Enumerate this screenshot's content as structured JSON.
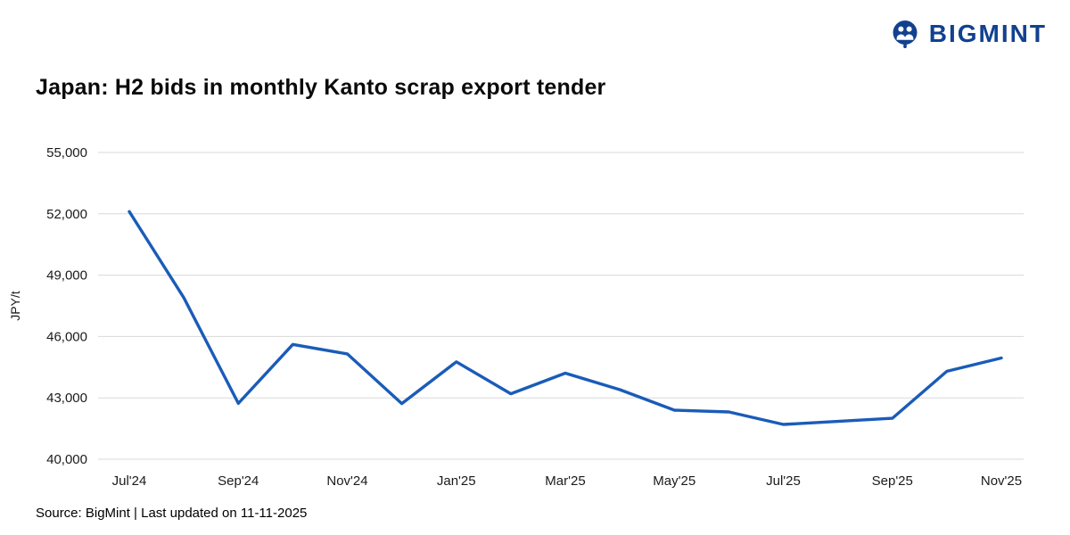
{
  "logo": {
    "text": "BIGMINT",
    "color": "#12418f"
  },
  "title": "Japan: H2 bids in monthly Kanto scrap export tender",
  "footer": "Source: BigMint | Last updated on 11-11-2025",
  "chart_data": {
    "type": "line",
    "title": "Japan: H2 bids in monthly Kanto scrap export tender",
    "xlabel": "",
    "ylabel": "JPY/t",
    "ylim": [
      40000,
      55000
    ],
    "ytick_step": 3000,
    "ytick_labels": [
      "40,000",
      "43,000",
      "46,000",
      "49,000",
      "52,000",
      "55,000"
    ],
    "x": [
      "Jul'24",
      "Aug'24",
      "Sep'24",
      "Oct'24",
      "Nov'24",
      "Dec'24",
      "Jan'25",
      "Feb'25",
      "Mar'25",
      "Apr'25",
      "May'25",
      "Jun'25",
      "Jul'25",
      "Aug'25",
      "Sep'25",
      "Oct'25",
      "Nov'25"
    ],
    "xtick_every": 2,
    "xtick_labels": [
      "Jul'24",
      "Sep'24",
      "Nov'24",
      "Jan'25",
      "Mar'25",
      "May'25",
      "Jul'25",
      "Sep'25",
      "Nov'25"
    ],
    "series": [
      {
        "name": "H2 bids",
        "color": "#1a5cb8",
        "values": [
          52110,
          47900,
          42730,
          45610,
          45150,
          42720,
          44760,
          43200,
          44210,
          43400,
          42400,
          42310,
          41700,
          41850,
          42000,
          44300,
          44950
        ]
      }
    ],
    "grid": "horizontal",
    "legend": "none"
  }
}
